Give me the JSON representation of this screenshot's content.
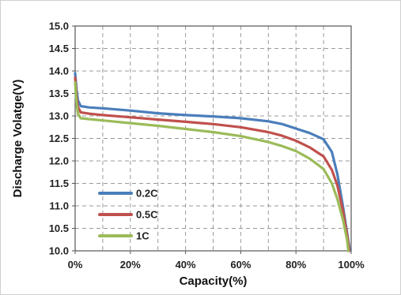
{
  "chart_data": {
    "type": "line",
    "title": "",
    "xlabel": "Capacity(%)",
    "ylabel": "Discharge Volatge(V)",
    "xlim": [
      0,
      100
    ],
    "ylim": [
      10.0,
      15.0
    ],
    "xticks": [
      "0%",
      "20%",
      "40%",
      "60%",
      "80%",
      "100%"
    ],
    "yticks": [
      "10.0",
      "10.5",
      "11.0",
      "11.5",
      "12.0",
      "12.5",
      "13.0",
      "13.5",
      "14.0",
      "14.5",
      "15.0"
    ],
    "grid": true,
    "legend_position": "bottom-left",
    "series": [
      {
        "name": "0.2C",
        "color": "#4a7ebb",
        "points": [
          [
            0,
            13.95
          ],
          [
            0.5,
            13.6
          ],
          [
            1.0,
            13.35
          ],
          [
            2,
            13.22
          ],
          [
            5,
            13.19
          ],
          [
            10,
            13.17
          ],
          [
            20,
            13.12
          ],
          [
            30,
            13.06
          ],
          [
            40,
            13.02
          ],
          [
            50,
            12.99
          ],
          [
            60,
            12.95
          ],
          [
            70,
            12.88
          ],
          [
            75,
            12.82
          ],
          [
            80,
            12.72
          ],
          [
            85,
            12.62
          ],
          [
            90,
            12.48
          ],
          [
            93,
            12.2
          ],
          [
            95,
            11.7
          ],
          [
            97,
            11.0
          ],
          [
            98.5,
            10.4
          ],
          [
            99.5,
            10.0
          ]
        ]
      },
      {
        "name": "0.5C",
        "color": "#c0504d",
        "points": [
          [
            0,
            13.85
          ],
          [
            0.5,
            13.45
          ],
          [
            1.0,
            13.2
          ],
          [
            2,
            13.08
          ],
          [
            5,
            13.05
          ],
          [
            10,
            13.02
          ],
          [
            20,
            12.97
          ],
          [
            30,
            12.92
          ],
          [
            40,
            12.87
          ],
          [
            50,
            12.82
          ],
          [
            60,
            12.75
          ],
          [
            70,
            12.64
          ],
          [
            75,
            12.56
          ],
          [
            80,
            12.45
          ],
          [
            85,
            12.3
          ],
          [
            90,
            12.1
          ],
          [
            93,
            11.8
          ],
          [
            95,
            11.45
          ],
          [
            97,
            10.9
          ],
          [
            98.5,
            10.35
          ],
          [
            99.3,
            10.0
          ]
        ]
      },
      {
        "name": "1C",
        "color": "#9bbb59",
        "points": [
          [
            0,
            13.75
          ],
          [
            0.5,
            13.3
          ],
          [
            1.0,
            13.05
          ],
          [
            2,
            12.95
          ],
          [
            5,
            12.93
          ],
          [
            10,
            12.9
          ],
          [
            20,
            12.84
          ],
          [
            30,
            12.78
          ],
          [
            40,
            12.71
          ],
          [
            50,
            12.64
          ],
          [
            60,
            12.55
          ],
          [
            70,
            12.42
          ],
          [
            75,
            12.33
          ],
          [
            80,
            12.22
          ],
          [
            85,
            12.05
          ],
          [
            90,
            11.82
          ],
          [
            93,
            11.5
          ],
          [
            95,
            11.15
          ],
          [
            97,
            10.7
          ],
          [
            98.5,
            10.25
          ],
          [
            99,
            10.0
          ]
        ]
      }
    ]
  }
}
